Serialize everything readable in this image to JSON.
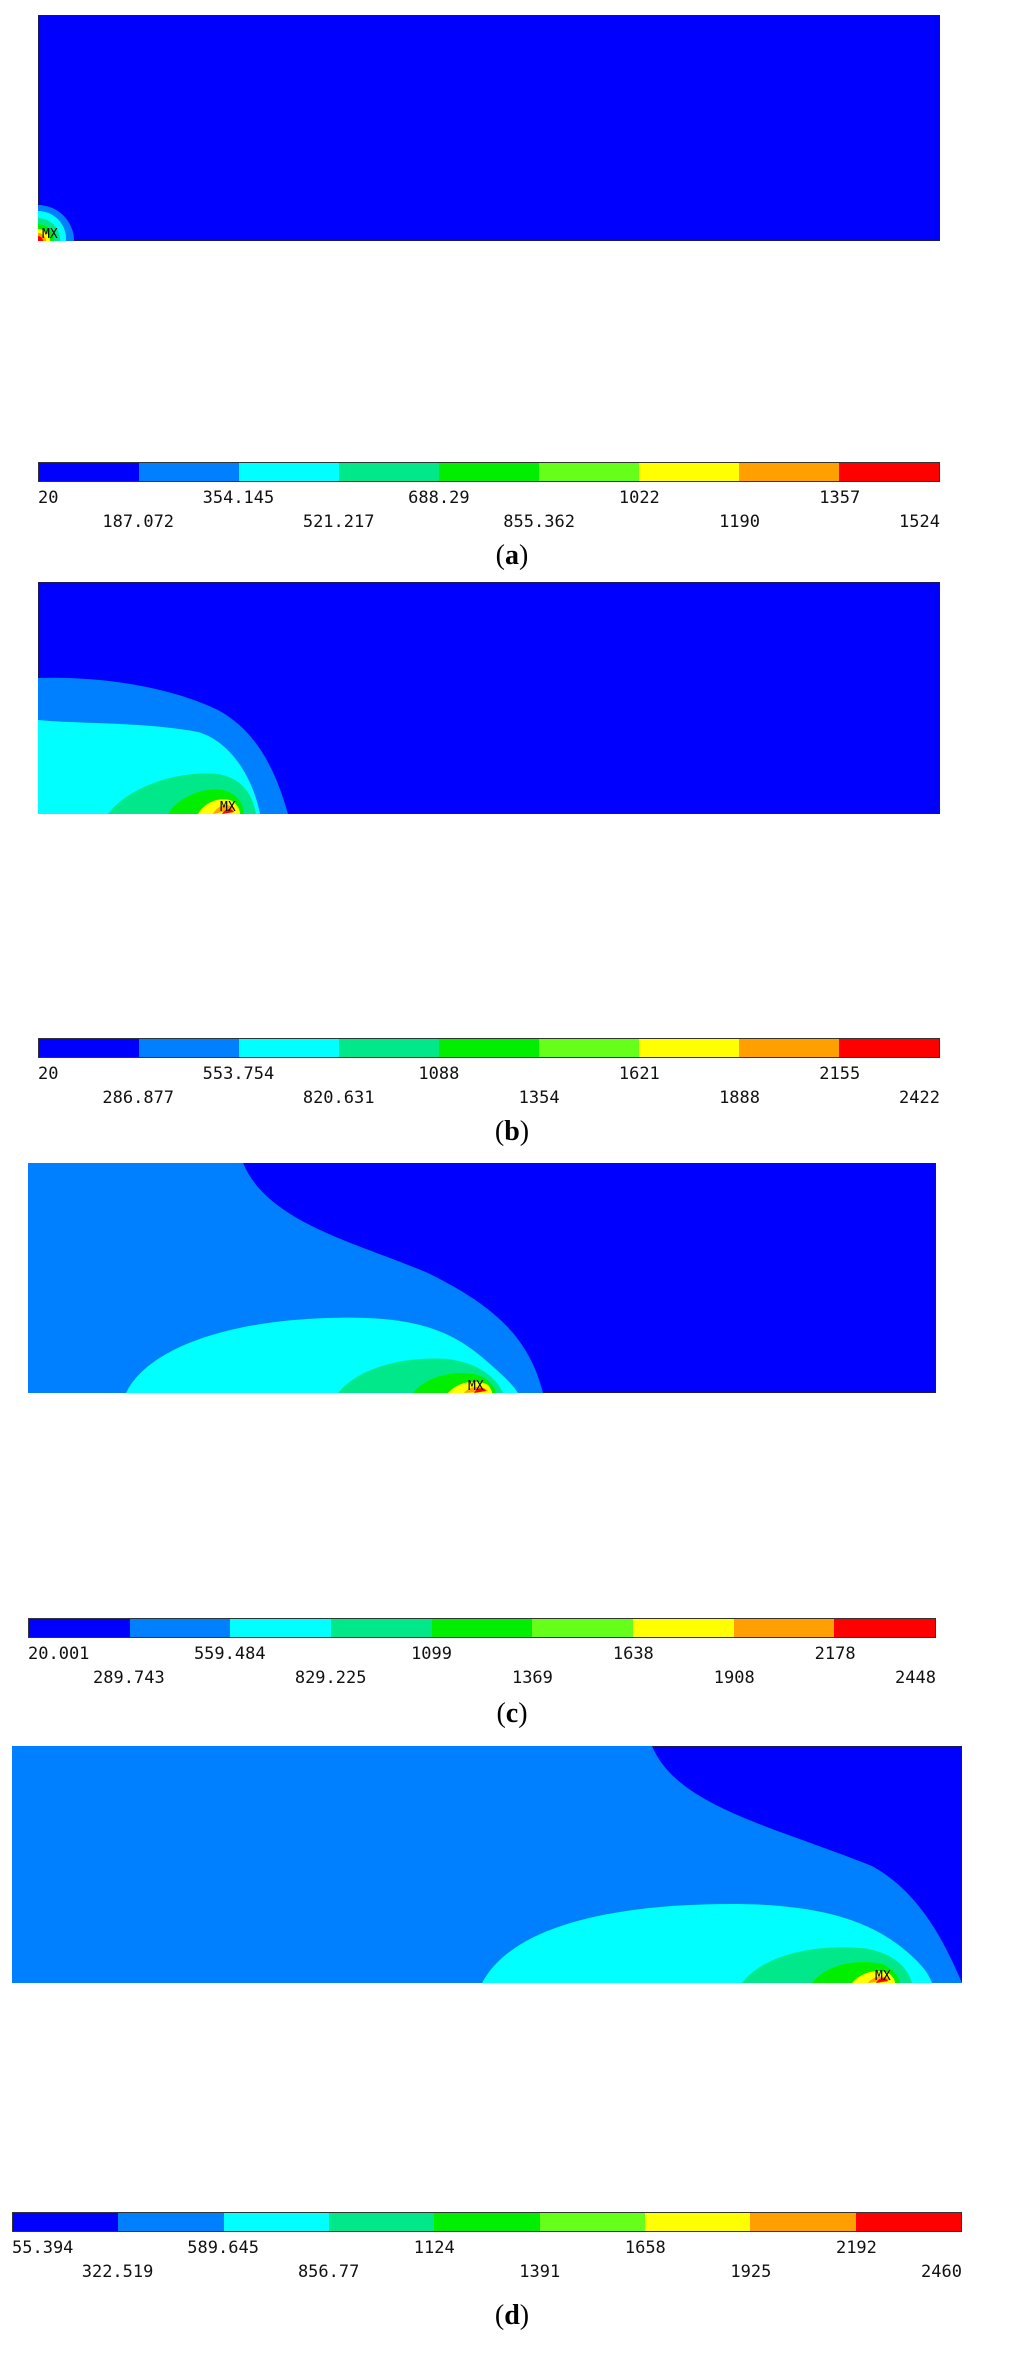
{
  "colors": [
    "#0000ff",
    "#0080ff",
    "#00ffff",
    "#00e88a",
    "#00ee00",
    "#66ff1a",
    "#ffff00",
    "#ffa000",
    "#ff0000"
  ],
  "marker_label": "MX",
  "panels": [
    {
      "id": "a",
      "caption_open": "(",
      "caption_letter": "a",
      "caption_close": ")",
      "legend_top": [
        "20",
        "354.145",
        "688.29",
        "1022",
        "1357"
      ],
      "legend_bottom": [
        "187.072",
        "521.217",
        "855.362",
        "1190",
        "1524"
      ]
    },
    {
      "id": "b",
      "caption_open": "(",
      "caption_letter": "b",
      "caption_close": ")",
      "legend_top": [
        "20",
        "553.754",
        "1088",
        "1621",
        "2155"
      ],
      "legend_bottom": [
        "286.877",
        "820.631",
        "1354",
        "1888",
        "2422"
      ]
    },
    {
      "id": "c",
      "caption_open": "(",
      "caption_letter": "c",
      "caption_close": ")",
      "legend_top": [
        "20.001",
        "559.484",
        "1099",
        "1638",
        "2178"
      ],
      "legend_bottom": [
        "289.743",
        "829.225",
        "1369",
        "1908",
        "2448"
      ]
    },
    {
      "id": "d",
      "caption_open": "(",
      "caption_letter": "d",
      "caption_close": ")",
      "legend_top": [
        "55.394",
        "589.645",
        "1124",
        "1658",
        "2192"
      ],
      "legend_bottom": [
        "322.519",
        "856.77",
        "1391",
        "1925",
        "2460"
      ]
    }
  ]
}
